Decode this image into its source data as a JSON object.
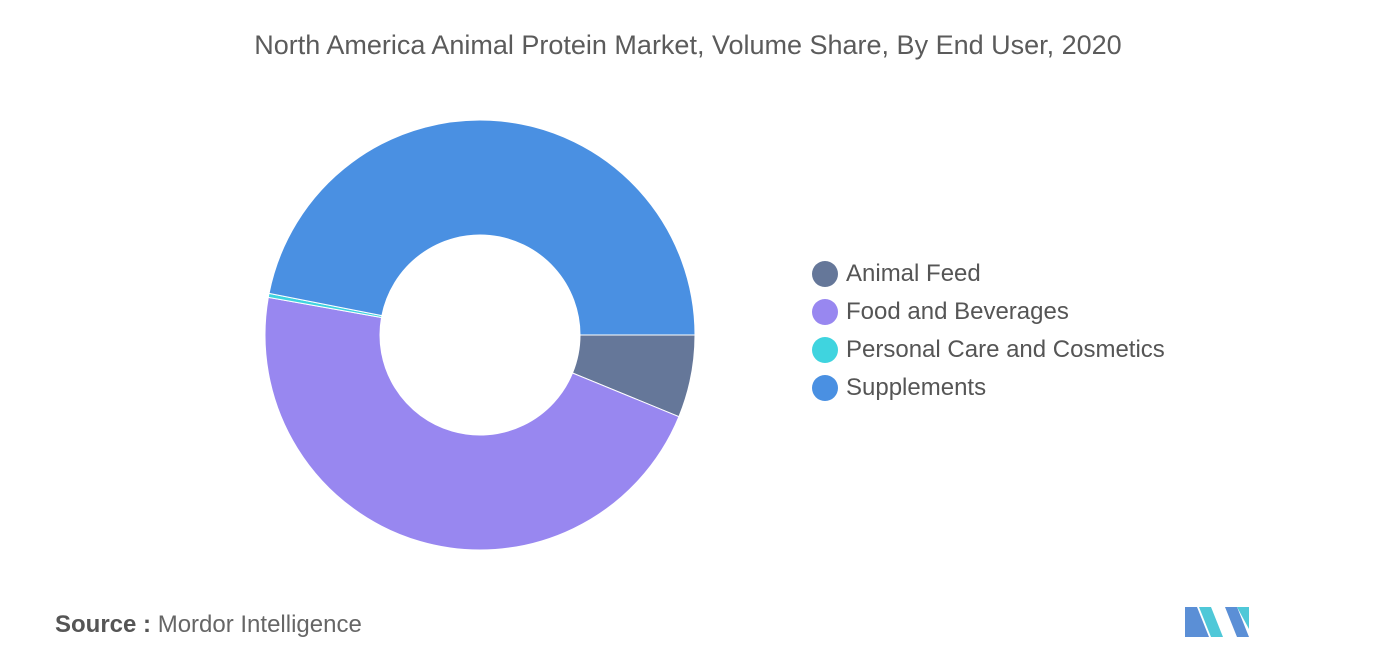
{
  "title": "North America Animal Protein Market, Volume Share, By End User, 2020",
  "chart_data": {
    "type": "pie",
    "variant": "donut",
    "title": "North America Animal Protein Market, Volume Share, By End User, 2020",
    "categories": [
      "Animal Feed",
      "Food and Beverages",
      "Personal Care and Cosmetics",
      "Supplements"
    ],
    "values": [
      6.2,
      46.6,
      0.3,
      46.9
    ],
    "unit": "%",
    "colors": [
      "#657799",
      "#9887f0",
      "#3fd4df",
      "#4a90e2"
    ],
    "start_angle_deg": 90,
    "legend_position": "right"
  },
  "legend": {
    "items": [
      {
        "label": "Animal Feed",
        "color": "#657799"
      },
      {
        "label": "Food and Beverages",
        "color": "#9887f0"
      },
      {
        "label": "Personal Care and Cosmetics",
        "color": "#3fd4df"
      },
      {
        "label": "Supplements",
        "color": "#4a90e2"
      }
    ]
  },
  "source": {
    "label": "Source :",
    "text": "Mordor Intelligence"
  },
  "logo": {
    "name": "mordor-intelligence-logo",
    "colors": [
      "#5b8fd6",
      "#4fc8d8"
    ]
  }
}
